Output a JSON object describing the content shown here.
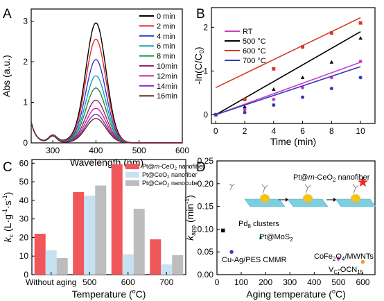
{
  "chart_data": [
    {
      "panel": "A",
      "type": "line",
      "xlabel": "Wavelength (nm)",
      "ylabel": "Abs (a.u.)",
      "xlim": [
        250,
        600
      ],
      "ylim": [
        0,
        3.3
      ],
      "xticks": [
        300,
        400,
        500,
        600
      ],
      "yticks": [
        0,
        1,
        2,
        3
      ],
      "legend_position": "top-right",
      "series": [
        {
          "name": "0 min",
          "color": "#000000",
          "peak": 2.95
        },
        {
          "name": "2 min",
          "color": "#e8272a",
          "peak": 2.55
        },
        {
          "name": "4 min",
          "color": "#2a3bd6",
          "peak": 2.05
        },
        {
          "name": "6 min",
          "color": "#12a3b8",
          "peak": 1.65
        },
        {
          "name": "8 min",
          "color": "#1f8f3a",
          "peak": 1.35
        },
        {
          "name": "10min",
          "color": "#9b1f6e",
          "peak": 1.05
        },
        {
          "name": "12min",
          "color": "#c02a9a",
          "peak": 0.85
        },
        {
          "name": "14min",
          "color": "#7a2fc0",
          "peak": 0.7
        },
        {
          "name": "16min",
          "color": "#6b2b1a",
          "peak": 0.6
        }
      ]
    },
    {
      "panel": "B",
      "type": "scatter",
      "xlabel": "Time (min)",
      "ylabel": "-ln(C/C0)",
      "xlim": [
        -0.3,
        11
      ],
      "ylim": [
        -0.2,
        2.45
      ],
      "xticks": [
        0,
        2,
        4,
        6,
        8,
        10
      ],
      "yticks": [
        0,
        1,
        2
      ],
      "legend_position": "top-left",
      "series": [
        {
          "name": "RT",
          "color": "#c83cc8",
          "marker": "circle",
          "x": [
            0,
            2,
            4,
            6,
            8,
            10
          ],
          "y": [
            0,
            0.12,
            0.35,
            0.62,
            0.85,
            1.22
          ],
          "fit": [
            0,
            0.12
          ]
        },
        {
          "name": "500 °C",
          "color": "#000000",
          "marker": "triangle",
          "x": [
            0,
            2,
            4,
            6,
            8,
            10
          ],
          "y": [
            0,
            0.18,
            0.58,
            0.85,
            1.2,
            1.75
          ],
          "fit": [
            0,
            0.19
          ]
        },
        {
          "name": "600 °C",
          "color": "#d23b2a",
          "marker": "square",
          "x": [
            0,
            2,
            4,
            6,
            8,
            10
          ],
          "y": [
            0,
            0.35,
            1.05,
            1.55,
            1.87,
            2.1
          ],
          "fit": [
            0.62,
            0.16
          ]
        },
        {
          "name": "700 °C",
          "color": "#2d3fb8",
          "marker": "circle",
          "x": [
            0,
            2,
            4,
            6,
            8,
            10
          ],
          "y": [
            0,
            0.05,
            0.22,
            0.4,
            0.6,
            0.85
          ],
          "fit": [
            0,
            0.11
          ]
        }
      ]
    },
    {
      "panel": "C",
      "type": "bar",
      "xlabel": "Temperature (°C)",
      "ylabel": "kc (L·g-1·s-1)",
      "ylim": [
        0,
        62
      ],
      "yticks": [
        0,
        10,
        20,
        30,
        40,
        50,
        60
      ],
      "categories": [
        "Without aging",
        "500",
        "600",
        "700"
      ],
      "legend_position": "top-right",
      "series": [
        {
          "name": "Pt@m-CeO2 nanofiber",
          "color": "#f0575a",
          "values": [
            22,
            44.5,
            59.5,
            19
          ]
        },
        {
          "name": "Pt@CeO2 nanofiber",
          "color": "#c6e2f2",
          "values": [
            13.2,
            42.5,
            11,
            5.5
          ]
        },
        {
          "name": "Pt@CeO2 nanocube",
          "color": "#bdbdbd",
          "values": [
            9,
            48,
            35.5,
            10.5
          ]
        }
      ]
    },
    {
      "panel": "D",
      "type": "scatter",
      "xlabel": "Aging temperature (°C)",
      "ylabel": "kapp (min-1)",
      "xlim": [
        0,
        650
      ],
      "ylim": [
        0,
        0.25
      ],
      "xticks": [
        0,
        100,
        200,
        300,
        400,
        500,
        600
      ],
      "yticks": [
        0.0,
        0.05,
        0.1,
        0.15,
        0.2,
        0.25
      ],
      "points": [
        {
          "label": "Pt@m-CeO2 nanofiber",
          "x": 600,
          "y": 0.203,
          "color": "#e8272a",
          "marker": "star"
        },
        {
          "label": "Pd8 clusters",
          "x": 25,
          "y": 0.097,
          "color": "#000000",
          "marker": "square"
        },
        {
          "label": "Pt@MoS2",
          "x": 180,
          "y": 0.081,
          "color": "#33b34a",
          "marker": "triangle"
        },
        {
          "label": "Cu-Ag/PES CMMR",
          "x": 60,
          "y": 0.05,
          "color": "#2d3fb8",
          "marker": "circle"
        },
        {
          "label": "CoFe2O4/MWNTs",
          "x": 500,
          "y": 0.035,
          "color": "#c83cc8",
          "marker": "diamond"
        },
        {
          "label": "Vc-OCN15",
          "x": 600,
          "y": 0.028,
          "color": "#f09a1c",
          "marker": "circle"
        }
      ]
    }
  ],
  "panels": {
    "a": "A",
    "b": "B",
    "c": "C",
    "d": "D"
  },
  "colors": {
    "axis": "#000000",
    "ceria": "#7ccfe0",
    "pt": "#f2c21d"
  }
}
